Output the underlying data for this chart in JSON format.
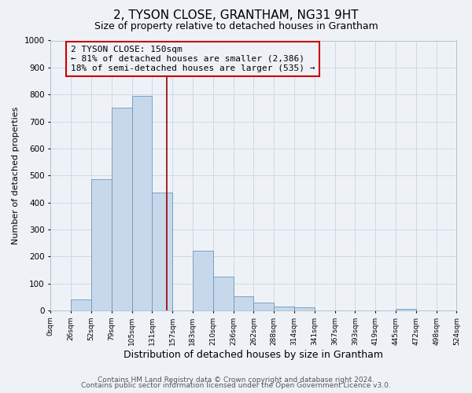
{
  "title": "2, TYSON CLOSE, GRANTHAM, NG31 9HT",
  "subtitle": "Size of property relative to detached houses in Grantham",
  "xlabel": "Distribution of detached houses by size in Grantham",
  "ylabel": "Number of detached properties",
  "bar_edges": [
    0,
    26,
    52,
    79,
    105,
    131,
    157,
    183,
    210,
    236,
    262,
    288,
    314,
    341,
    367,
    393,
    419,
    445,
    472,
    498,
    524
  ],
  "bar_heights": [
    0,
    42,
    485,
    750,
    795,
    438,
    0,
    220,
    125,
    52,
    28,
    15,
    10,
    0,
    0,
    0,
    0,
    5,
    0,
    0
  ],
  "bar_color": "#c8d8eb",
  "bar_edge_color": "#6699bb",
  "vline_x": 150,
  "vline_color": "#990000",
  "annotation_line1": "2 TYSON CLOSE: 150sqm",
  "annotation_line2": "← 81% of detached houses are smaller (2,386)",
  "annotation_line3": "18% of semi-detached houses are larger (535) →",
  "annotation_box_color": "#cc0000",
  "ylim": [
    0,
    1000
  ],
  "yticks": [
    0,
    100,
    200,
    300,
    400,
    500,
    600,
    700,
    800,
    900,
    1000
  ],
  "xtick_labels": [
    "0sqm",
    "26sqm",
    "52sqm",
    "79sqm",
    "105sqm",
    "131sqm",
    "157sqm",
    "183sqm",
    "210sqm",
    "236sqm",
    "262sqm",
    "288sqm",
    "314sqm",
    "341sqm",
    "367sqm",
    "393sqm",
    "419sqm",
    "445sqm",
    "472sqm",
    "498sqm",
    "524sqm"
  ],
  "grid_color": "#ccd9e8",
  "bg_color": "#eef2f7",
  "footer_line1": "Contains HM Land Registry data © Crown copyright and database right 2024.",
  "footer_line2": "Contains public sector information licensed under the Open Government Licence v3.0.",
  "title_fontsize": 11,
  "subtitle_fontsize": 9,
  "ylabel_fontsize": 8,
  "xlabel_fontsize": 9,
  "annotation_fontsize": 8,
  "footer_fontsize": 6.5
}
